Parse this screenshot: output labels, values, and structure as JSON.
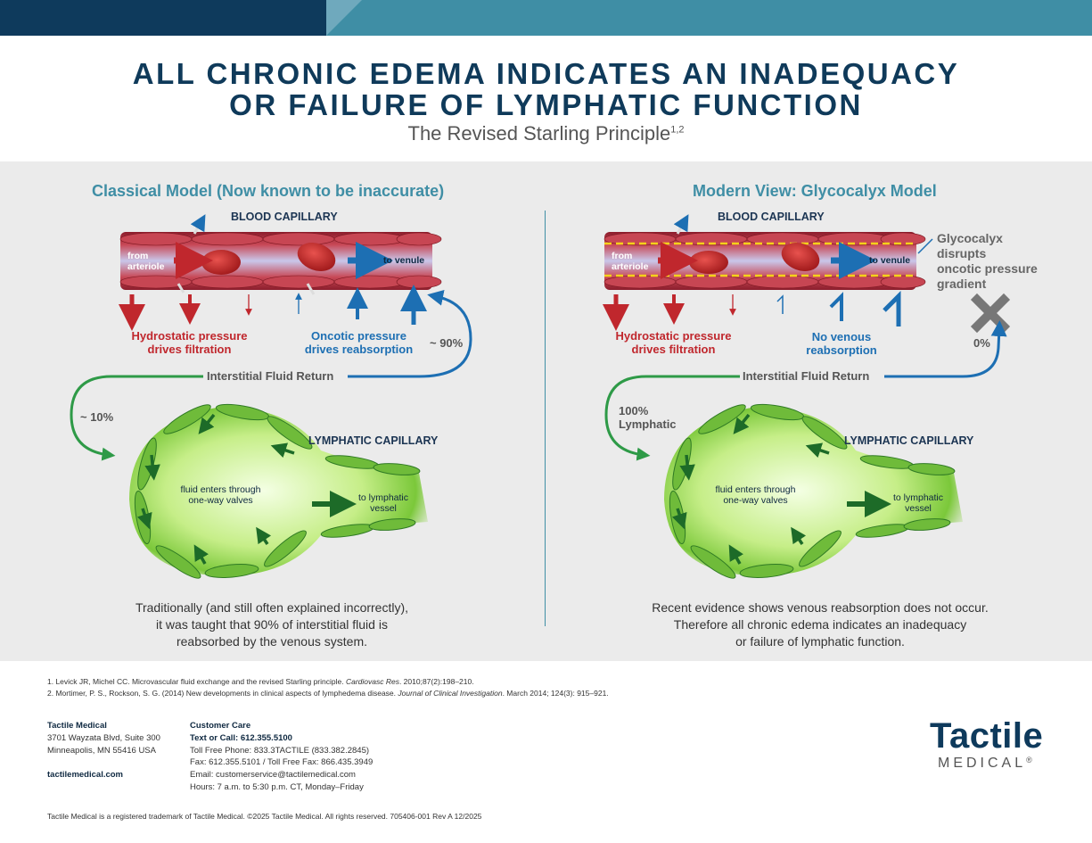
{
  "header": {
    "title_line1": "ALL CHRONIC EDEMA INDICATES AN INADEQUACY",
    "title_line2": "OR FAILURE OF LYMPHATIC FUNCTION",
    "subtitle": "The Revised Starling Principle",
    "subtitle_sup": "1,2"
  },
  "classical": {
    "heading": "Classical Model (Now known to be inaccurate)",
    "blood_label": "BLOOD CAPILLARY",
    "from_arteriole": "from\narteriole",
    "to_venule": "to venule",
    "hydrostatic": "Hydrostatic pressure\ndrives filtration",
    "oncotic": "Oncotic pressure\ndrives reabsorption",
    "pct_venous": "~ 90%",
    "interstitial": "Interstitial Fluid Return",
    "pct_lymph": "~ 10%",
    "lymph_label": "LYMPHATIC CAPILLARY",
    "fluid_enters": "fluid enters through\none-way valves",
    "to_lymph": "to lymphatic\nvessel",
    "caption": "Traditionally (and still often explained incorrectly),\nit was taught that 90% of interstitial fluid is\nreabsorbed by the venous system."
  },
  "modern": {
    "heading": "Modern View: Glycocalyx Model",
    "blood_label": "BLOOD CAPILLARY",
    "from_arteriole": "from\narteriole",
    "to_venule": "to venule",
    "glycocalyx": "Glycocalyx\ndisrupts\noncotic pressure\ngradient",
    "hydrostatic": "Hydrostatic pressure\ndrives filtration",
    "no_venous": "No venous\nreabsorption",
    "pct_venous": "0%",
    "interstitial": "Interstitial Fluid Return",
    "pct_lymph": "100%\nLymphatic",
    "lymph_label": "LYMPHATIC CAPILLARY",
    "fluid_enters": "fluid enters through\none-way valves",
    "to_lymph": "to lymphatic\nvessel",
    "caption": "Recent evidence shows venous reabsorption does not occur.\nTherefore all chronic edema indicates an inadequacy\nor failure of lymphatic function."
  },
  "references": {
    "ref1_a": "1.  Levick JR, Michel CC. Microvascular fluid exchange and the revised Starling principle. ",
    "ref1_journal": "Cardiovasc Res",
    "ref1_b": ". 2010;87(2):198–210.",
    "ref2_a": "2.  Mortimer, P. S., Rockson, S. G. (2014) New developments in clinical aspects of lymphedema disease. ",
    "ref2_journal": "Journal of Clinical Investigation",
    "ref2_b": ". March 2014; 124(3): 915–921."
  },
  "footer": {
    "company": "Tactile Medical",
    "address1": "3701 Wayzata Blvd, Suite 300",
    "address2": "Minneapolis, MN 55416 USA",
    "website": "tactilemedical.com",
    "care_title": "Customer Care",
    "care_call": "Text or Call: 612.355.5100",
    "care_tollfree": "Toll Free Phone: 833.3TACTILE (833.382.2845)",
    "care_fax": "Fax: 612.355.5101 / Toll Free Fax: 866.435.3949",
    "care_email": "Email: customerservice@tactilemedical.com",
    "care_hours": "Hours: 7 a.m. to 5:30 p.m. CT, Monday–Friday",
    "legal": "Tactile Medical is a registered trademark of Tactile Medical. ©2025 Tactile Medical. All rights reserved. 705406-001 Rev A 12/2025"
  },
  "logo": {
    "word1": "Tactile",
    "word2": "MEDICAL",
    "reg": "®"
  },
  "colors": {
    "navy": "#0e3a5c",
    "teal": "#3f8ea5",
    "red": "#c0272d",
    "blue": "#1d6fb3",
    "green": "#2e9a47"
  }
}
